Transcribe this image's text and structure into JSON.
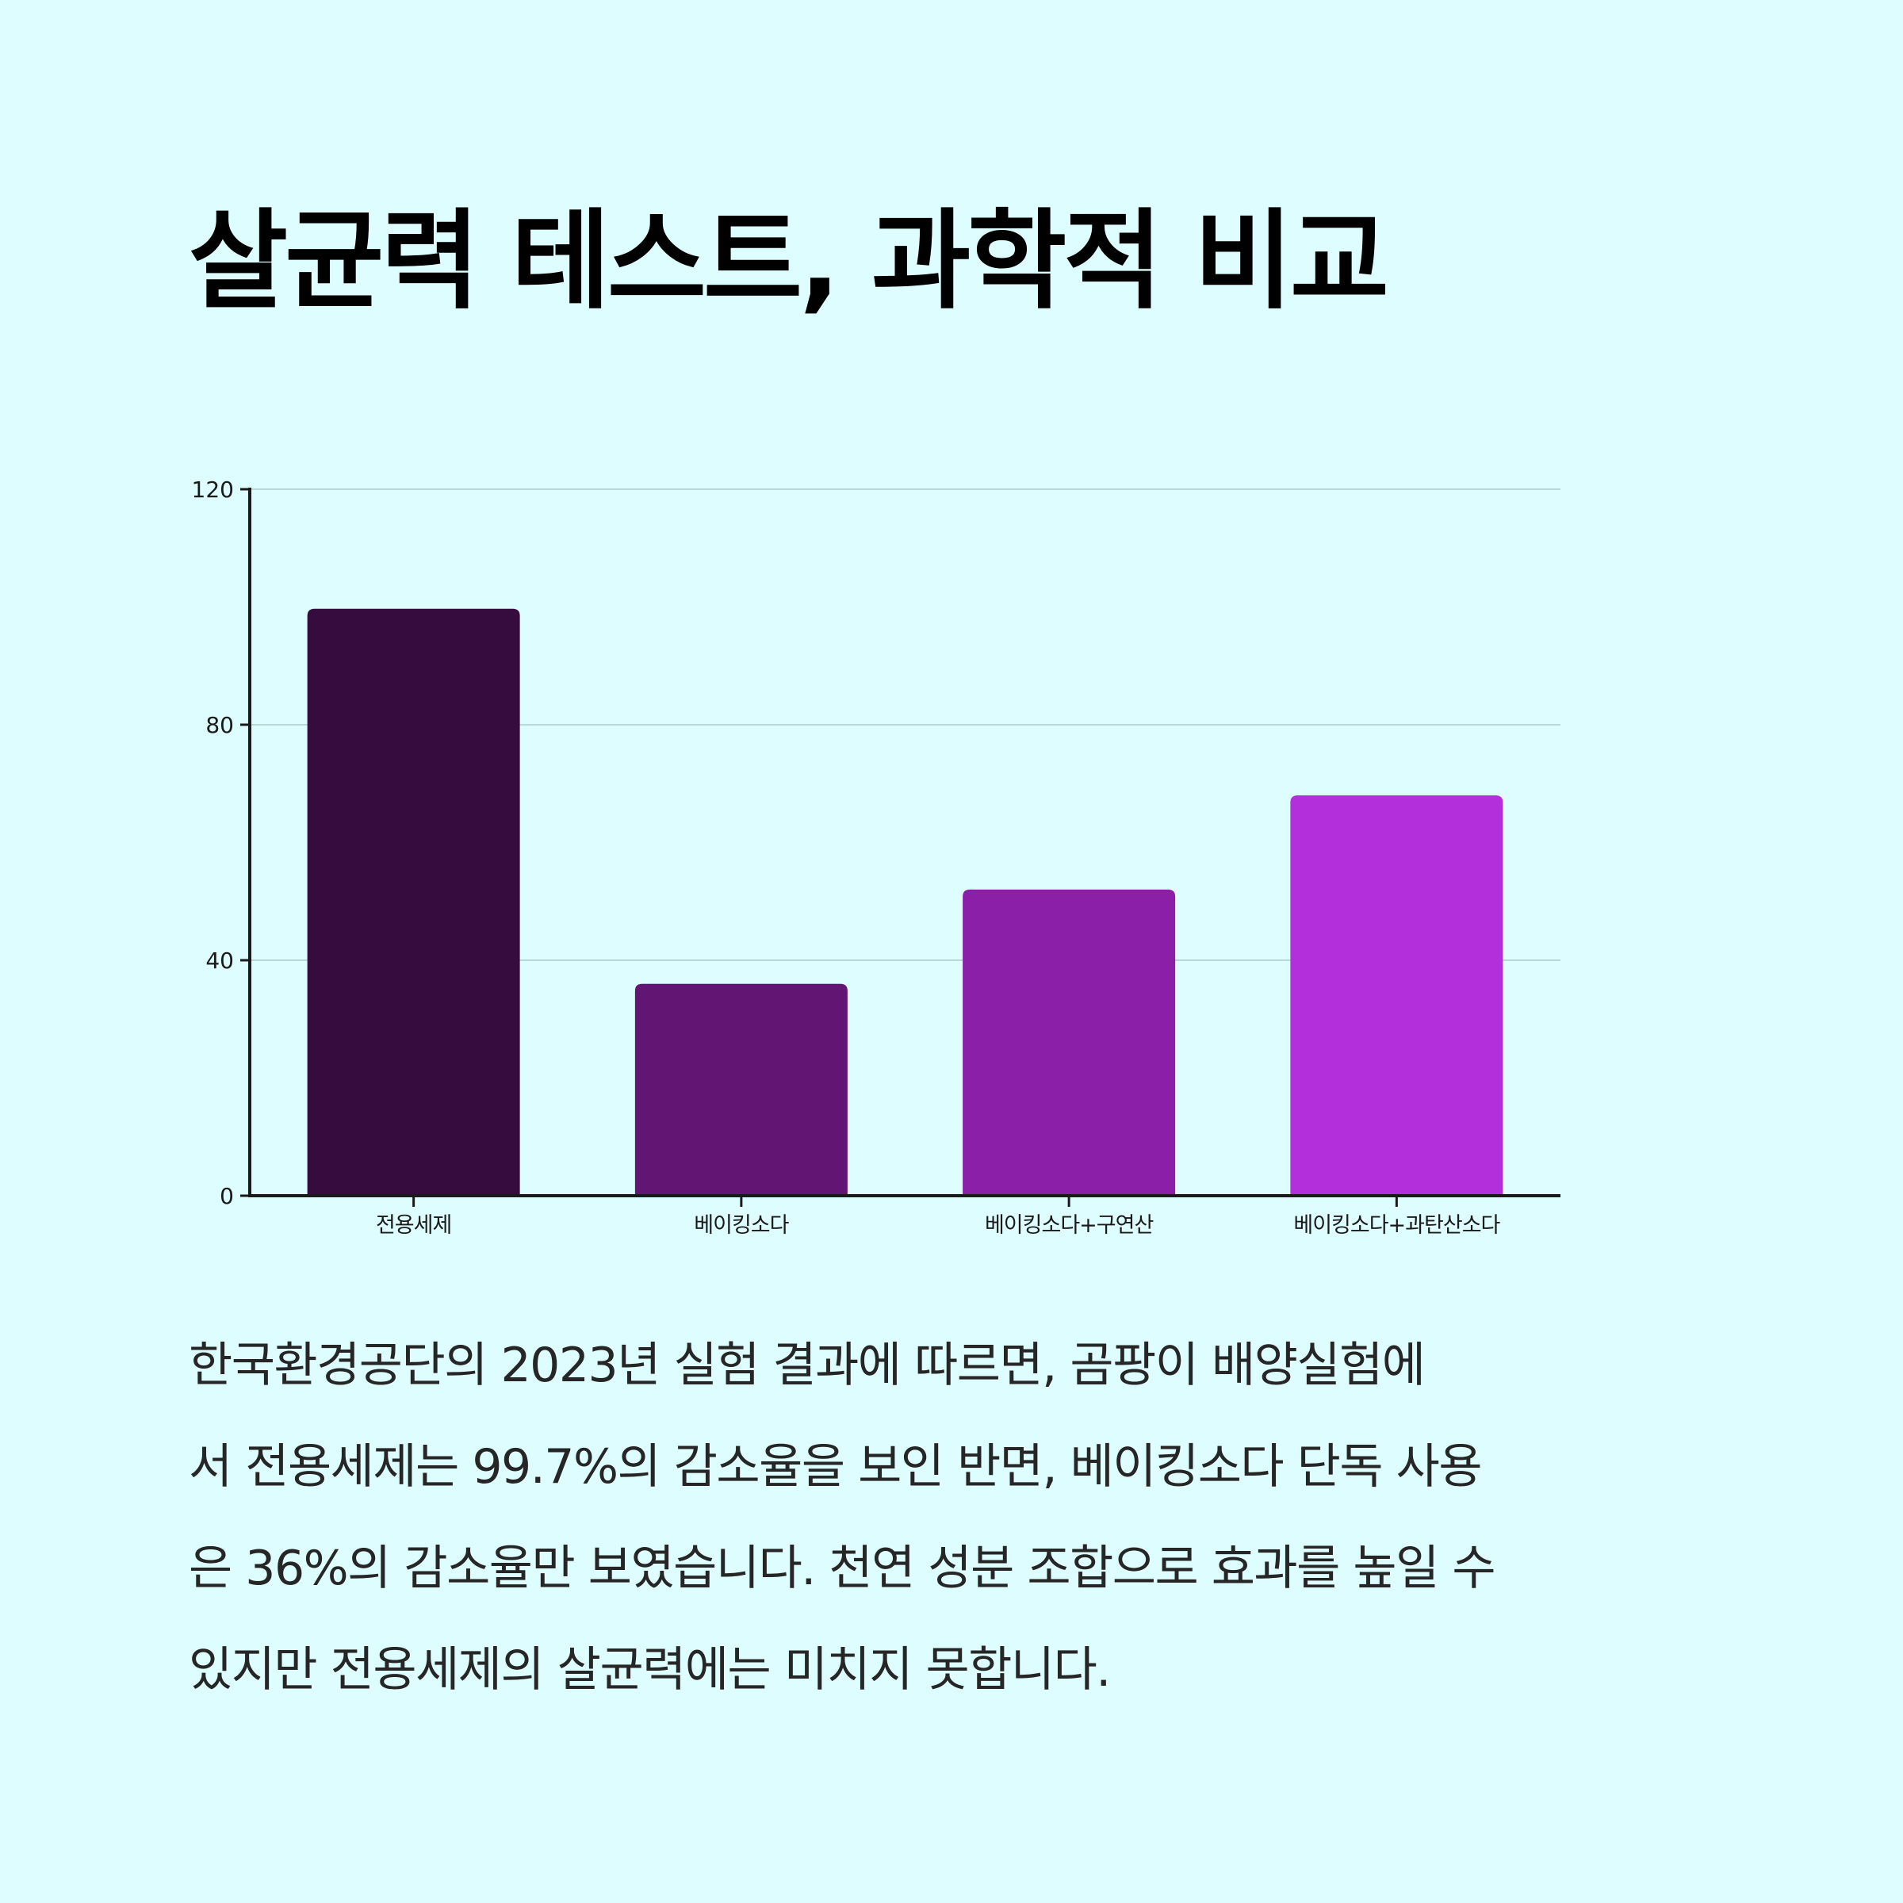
{
  "title": "살균력 테스트, 과학적 비교",
  "chart_data": {
    "type": "bar",
    "categories": [
      "전용세제",
      "베이킹소다",
      "베이킹소다+구연산",
      "베이킹소다+과탄산소다"
    ],
    "values": [
      99.7,
      36,
      52,
      68
    ],
    "colors": [
      "#360b3d",
      "#631574",
      "#8c1fa8",
      "#b22fdb"
    ],
    "ylim": [
      0,
      120
    ],
    "yticks": [
      0,
      40,
      80,
      120
    ],
    "grid": true,
    "xlabel": "",
    "ylabel": ""
  },
  "description": {
    "lines": [
      "한국환경공단의 2023년 실험 결과에 따르면, 곰팡이 배양실험에",
      "서 전용세제는 99.7%의 감소율을 보인 반면, 베이킹소다 단독 사용",
      "은 36%의 감소율만 보였습니다. 천연 성분 조합으로 효과를 높일 수",
      "있지만 전용세제의 살균력에는 미치지 못합니다."
    ]
  }
}
